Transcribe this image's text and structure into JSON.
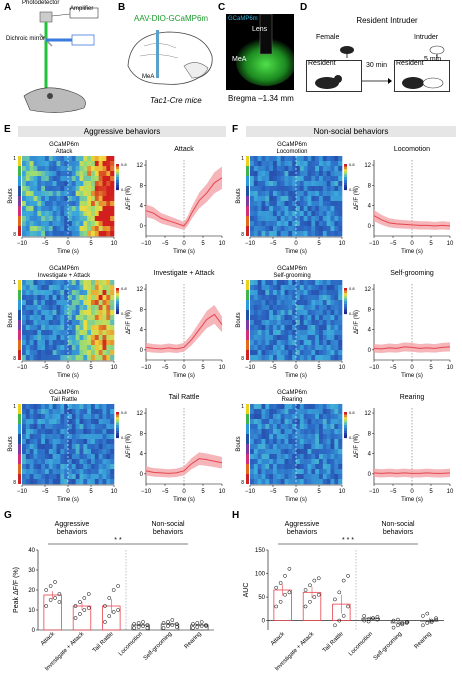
{
  "panels": {
    "A": "A",
    "B": "B",
    "C": "C",
    "D": "D",
    "E": "E",
    "F": "F",
    "G": "G",
    "H": "H"
  },
  "panelA": {
    "photodetector": "Photodetector",
    "amplifier": "Amplifier",
    "dichroic": "Dichroic mirror",
    "laser": "470 nm"
  },
  "panelB": {
    "virus": "AAV-DIO-GCaMP6m",
    "region": "MeA",
    "mouse": "Tac1-Cre mice"
  },
  "panelC": {
    "lens": "Lens",
    "region": "MeA",
    "bregma": "Bregma –1.34 mm",
    "stain": "GCaMP6m"
  },
  "panelD": {
    "title": "Resident Intruder",
    "female": "Female",
    "resident1": "Resident",
    "gap": "30 min",
    "resident2": "Resident",
    "intruder": "Intruder",
    "duration": "5 min"
  },
  "sectionE": "Aggressive behaviors",
  "sectionF": "Non-social behaviors",
  "colors": {
    "trace": "#e8454f",
    "band": "#f3a3a7",
    "barHighlight": "#e8454f",
    "hmLow": "#2b4aa8",
    "hmHigh": "#d11f1f"
  },
  "heatmap_common": {
    "ylabel": "Bouts",
    "xlabel": "Time (s)",
    "xticks": [
      "−10",
      "−5",
      "0",
      "5",
      "10"
    ],
    "cbar_top": "0.8",
    "cbar_bot": "0.2"
  },
  "trace_common": {
    "ylabel": "ΔF/F (%)",
    "xlabel": "Time (s)",
    "yticks": [
      "0",
      "4",
      "8",
      "12"
    ],
    "xticks": [
      "−10",
      "−5",
      "0",
      "5",
      "10"
    ]
  },
  "behaviors": [
    {
      "key": "attack",
      "hm_title1": "GCaMP6m",
      "hm_title2": "Attack",
      "trace_title": "Attack",
      "bouts_top": "1",
      "bouts_bot": "8"
    },
    {
      "key": "locomotion",
      "hm_title1": "GCaMP6m",
      "hm_title2": "Locomotion",
      "trace_title": "Locomotion",
      "bouts_top": "1",
      "bouts_bot": "8"
    },
    {
      "key": "investigate",
      "hm_title1": "GCaMP6m",
      "hm_title2": "Investigate + Attack",
      "trace_title": "Investigate + Attack",
      "bouts_top": "1",
      "bouts_bot": "8"
    },
    {
      "key": "selfgrooming",
      "hm_title1": "GCaMP6m",
      "hm_title2": "Self-grooming",
      "trace_title": "Self-grooming",
      "bouts_top": "1",
      "bouts_bot": "8"
    },
    {
      "key": "tailrattle",
      "hm_title1": "GCaMP6m",
      "hm_title2": "Tail Rattle",
      "trace_title": "Tail Rattle",
      "bouts_top": "1",
      "bouts_bot": "8"
    },
    {
      "key": "rearing",
      "hm_title1": "GCaMP6m",
      "hm_title2": "Rearing",
      "trace_title": "Rearing",
      "bouts_top": "1",
      "bouts_bot": "8"
    }
  ],
  "chart_data": [
    {
      "type": "line",
      "panel": "E-Attack",
      "x": [
        -10,
        -8,
        -6,
        -4,
        -2,
        0,
        1,
        2,
        4,
        6,
        8,
        10
      ],
      "y": [
        3,
        2.5,
        1.5,
        1,
        0.5,
        0,
        1,
        2.5,
        5,
        6.5,
        8.5,
        9.5
      ],
      "xlabel": "Time (s)",
      "ylabel": "ΔF/F (%)",
      "ylim": [
        -2,
        13
      ]
    },
    {
      "type": "line",
      "panel": "F-Locomotion",
      "x": [
        -10,
        -8,
        -6,
        -4,
        -2,
        0,
        2,
        4,
        6,
        8,
        10
      ],
      "y": [
        2,
        1.2,
        0.6,
        0.4,
        0.3,
        0.2,
        0.1,
        0.1,
        0,
        0.1,
        0
      ],
      "xlabel": "Time (s)",
      "ylabel": "ΔF/F (%)",
      "ylim": [
        -2,
        13
      ]
    },
    {
      "type": "line",
      "panel": "E-Investigate + Attack",
      "x": [
        -10,
        -8,
        -6,
        -4,
        -2,
        0,
        2,
        4,
        6,
        8,
        10
      ],
      "y": [
        0.5,
        0.3,
        0.2,
        0.4,
        0.2,
        0.5,
        2,
        4,
        6,
        7,
        5
      ],
      "xlabel": "Time (s)",
      "ylabel": "ΔF/F (%)",
      "ylim": [
        -2,
        13
      ]
    },
    {
      "type": "line",
      "panel": "F-Self-grooming",
      "x": [
        -10,
        -8,
        -6,
        -4,
        -2,
        0,
        2,
        4,
        6,
        8,
        10
      ],
      "y": [
        0.3,
        0.2,
        0.4,
        0.3,
        0.6,
        0.5,
        0.3,
        0.4,
        0.3,
        0.5,
        0.6
      ],
      "xlabel": "Time (s)",
      "ylabel": "ΔF/F (%)",
      "ylim": [
        -2,
        13
      ]
    },
    {
      "type": "line",
      "panel": "E-Tail Rattle",
      "x": [
        -10,
        -8,
        -6,
        -4,
        -2,
        0,
        2,
        4,
        6,
        8,
        10
      ],
      "y": [
        0.6,
        0.3,
        0.2,
        0.1,
        0.2,
        0.6,
        2,
        3,
        2.8,
        2.5,
        2.2
      ],
      "xlabel": "Time (s)",
      "ylabel": "ΔF/F (%)",
      "ylim": [
        -2,
        13
      ]
    },
    {
      "type": "line",
      "panel": "F-Rearing",
      "x": [
        -10,
        -8,
        -6,
        -4,
        -2,
        0,
        2,
        4,
        6,
        8,
        10
      ],
      "y": [
        0.2,
        0.1,
        0.2,
        0.1,
        0.2,
        0.1,
        0.1,
        0.2,
        0.1,
        0.1,
        0.2
      ],
      "xlabel": "Time (s)",
      "ylabel": "ΔF/F (%)",
      "ylim": [
        -2,
        13
      ]
    },
    {
      "type": "bar",
      "panel": "G",
      "categories": [
        "Attack",
        "Investigate + Attack",
        "Tail Rattle",
        "Locomotion",
        "Self-grooming",
        "Rearing"
      ],
      "values": [
        17.5,
        12,
        12,
        2.5,
        3,
        2.5
      ],
      "errors": [
        2,
        2,
        3.5,
        0.7,
        0.8,
        0.6
      ],
      "ylabel": "Peak ΔF/F (%)",
      "ylim": [
        0,
        40
      ],
      "yticks": [
        "0",
        "10",
        "20",
        "30",
        "40"
      ],
      "groups": [
        "Aggressive behaviors",
        "Non-social behaviors"
      ],
      "significance": "* *",
      "points": [
        [
          12,
          15,
          16,
          18,
          20,
          22,
          24,
          14
        ],
        [
          6,
          8,
          10,
          11,
          12,
          14,
          16,
          18
        ],
        [
          4,
          7,
          9,
          10,
          12,
          16,
          20,
          22
        ],
        [
          1,
          1.5,
          2,
          2.5,
          3,
          3.5,
          4,
          1
        ],
        [
          1,
          2,
          2.5,
          3,
          3.5,
          4,
          5,
          1.5
        ],
        [
          1,
          1.5,
          2,
          2.5,
          3,
          3.5,
          4,
          2
        ]
      ]
    },
    {
      "type": "bar",
      "panel": "H",
      "categories": [
        "Attack",
        "Investigate + Attack",
        "Tail Rattle",
        "Locomotion",
        "Self-grooming",
        "Rearing"
      ],
      "values": [
        65,
        60,
        35,
        5,
        -5,
        0
      ],
      "errors": [
        12,
        12,
        20,
        4,
        4,
        6
      ],
      "ylabel": "AUC",
      "ylim": [
        -20,
        150
      ],
      "yticks": [
        "0",
        "50",
        "100",
        "150"
      ],
      "groups": [
        "Aggressive behaviors",
        "Non-social behaviors"
      ],
      "significance": "* * *",
      "points": [
        [
          30,
          40,
          55,
          60,
          70,
          80,
          95,
          110
        ],
        [
          30,
          40,
          50,
          55,
          65,
          75,
          85,
          90
        ],
        [
          -10,
          0,
          10,
          30,
          45,
          60,
          85,
          95
        ],
        [
          0,
          3,
          5,
          8,
          10,
          -2,
          5,
          2
        ],
        [
          -15,
          -10,
          -5,
          -5,
          0,
          2,
          -8,
          -3
        ],
        [
          -10,
          -5,
          0,
          5,
          10,
          15,
          -3,
          2
        ]
      ]
    }
  ]
}
